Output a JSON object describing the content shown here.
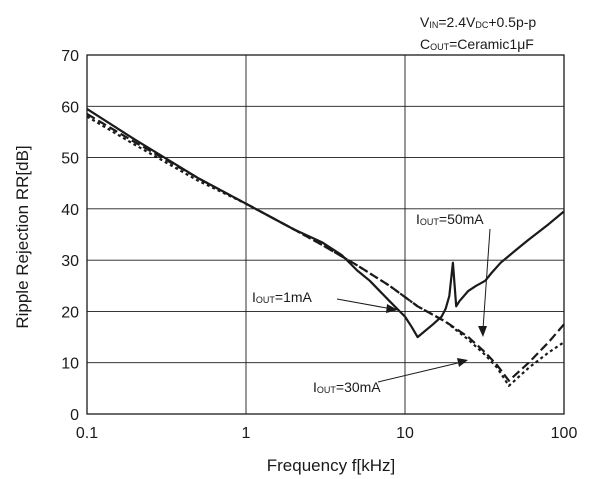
{
  "chart_data": {
    "type": "line",
    "title": "",
    "conditions": [
      {
        "main": "V",
        "sub": "IN",
        "rest": "=2.4V",
        "sub2": "DC",
        "rest2": "+0.5p-p"
      },
      {
        "main": "C",
        "sub": "OUT",
        "rest": "=Ceramic1",
        "mu": "μ",
        "rest2": "F"
      }
    ],
    "xlabel": "Frequency f[kHz]",
    "ylabel": "Ripple Rejection RR[dB]",
    "xscale": "log",
    "xlim": [
      0.1,
      100
    ],
    "ylim": [
      0,
      70
    ],
    "x_ticks": [
      0.1,
      1,
      10,
      100
    ],
    "x_tick_labels": [
      "0.1",
      "1",
      "10",
      "100"
    ],
    "y_ticks": [
      0,
      10,
      20,
      30,
      40,
      50,
      60,
      70
    ],
    "y_tick_labels": [
      "0",
      "10",
      "20",
      "30",
      "40",
      "50",
      "60",
      "70"
    ],
    "grid": true,
    "series": [
      {
        "name": "IOUT=1mA",
        "style": "dashed",
        "points": [
          [
            0.1,
            58.5
          ],
          [
            0.2,
            53
          ],
          [
            0.5,
            46
          ],
          [
            1,
            41
          ],
          [
            2,
            36
          ],
          [
            3,
            33
          ],
          [
            5,
            29
          ],
          [
            8,
            25
          ],
          [
            12,
            21
          ],
          [
            18,
            18
          ],
          [
            25,
            15
          ],
          [
            32,
            12
          ],
          [
            38,
            9.5
          ],
          [
            45,
            6.5
          ],
          [
            60,
            10
          ],
          [
            80,
            14
          ],
          [
            100,
            17.5
          ]
        ]
      },
      {
        "name": "IOUT=30mA",
        "style": "dotted",
        "points": [
          [
            0.1,
            58
          ],
          [
            0.2,
            52.5
          ],
          [
            0.5,
            45.5
          ],
          [
            1,
            41
          ],
          [
            2,
            36
          ],
          [
            3,
            33
          ],
          [
            5,
            29
          ],
          [
            8,
            25
          ],
          [
            12,
            21
          ],
          [
            18,
            18
          ],
          [
            25,
            14.5
          ],
          [
            32,
            11.5
          ],
          [
            38,
            9
          ],
          [
            45,
            5.5
          ],
          [
            60,
            9
          ],
          [
            80,
            12
          ],
          [
            100,
            14
          ]
        ]
      },
      {
        "name": "IOUT=50mA",
        "style": "solid",
        "points": [
          [
            0.1,
            59.5
          ],
          [
            0.2,
            53.5
          ],
          [
            0.5,
            46
          ],
          [
            1,
            41
          ],
          [
            2,
            36
          ],
          [
            3,
            33.5
          ],
          [
            4,
            31
          ],
          [
            5,
            28
          ],
          [
            6,
            26
          ],
          [
            8,
            22
          ],
          [
            10,
            19
          ],
          [
            11,
            17
          ],
          [
            12,
            15
          ],
          [
            15,
            17.5
          ],
          [
            17,
            19
          ],
          [
            18,
            20.5
          ],
          [
            19,
            23
          ],
          [
            20,
            29.5
          ],
          [
            21,
            21
          ],
          [
            22,
            22
          ],
          [
            25,
            24
          ],
          [
            28,
            25
          ],
          [
            30,
            25.5
          ],
          [
            32,
            26
          ],
          [
            35,
            27.5
          ],
          [
            40,
            29.5
          ],
          [
            50,
            32
          ],
          [
            60,
            34
          ],
          [
            80,
            37
          ],
          [
            100,
            39.5
          ]
        ]
      }
    ],
    "annotations": [
      {
        "prefix": "I",
        "sub": "OUT",
        "text": "=1mA",
        "series": "IOUT=1mA"
      },
      {
        "prefix": "I",
        "sub": "OUT",
        "text": "=30mA",
        "series": "IOUT=30mA"
      },
      {
        "prefix": "I",
        "sub": "OUT",
        "text": "=50mA",
        "series": "IOUT=50mA"
      }
    ]
  }
}
